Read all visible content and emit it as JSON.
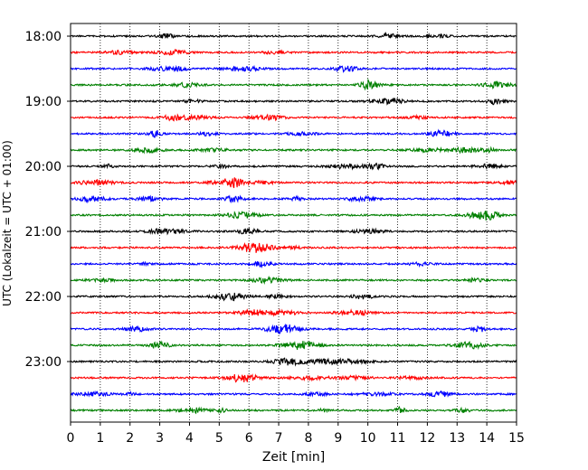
{
  "chart_data": {
    "type": "line",
    "title": "",
    "xlabel": "Zeit  [min]",
    "ylabel": "UTC (Lokalzeit = UTC + 01:00)",
    "xlim": [
      0,
      15
    ],
    "x_ticks": [
      0,
      1,
      2,
      3,
      4,
      5,
      6,
      7,
      8,
      9,
      10,
      11,
      12,
      13,
      14,
      15
    ],
    "x_tick_labels": [
      "0",
      "1",
      "2",
      "3",
      "4",
      "5",
      "6",
      "7",
      "8",
      "9",
      "10",
      "11",
      "12",
      "13",
      "14",
      "15"
    ],
    "y_tick_labels": [
      "18:00",
      "19:00",
      "20:00",
      "21:00",
      "22:00",
      "23:00"
    ],
    "trace_minutes": 15,
    "trace_start_times": [
      "18:00",
      "18:15",
      "18:30",
      "18:45",
      "19:00",
      "19:15",
      "19:30",
      "19:45",
      "20:00",
      "20:15",
      "20:30",
      "20:45",
      "21:00",
      "21:15",
      "21:30",
      "21:45",
      "22:00",
      "22:15",
      "22:30",
      "22:45",
      "23:00",
      "23:15",
      "23:30",
      "23:45"
    ],
    "trace_colors": [
      "#000000",
      "#ff0000",
      "#0000ff",
      "#008000"
    ],
    "grid": "vertical dotted at each minute",
    "legend": "none"
  }
}
